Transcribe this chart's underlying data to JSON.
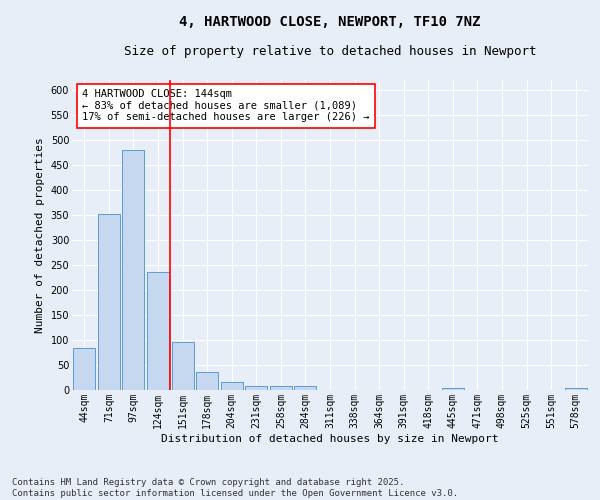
{
  "title1": "4, HARTWOOD CLOSE, NEWPORT, TF10 7NZ",
  "title2": "Size of property relative to detached houses in Newport",
  "xlabel": "Distribution of detached houses by size in Newport",
  "ylabel": "Number of detached properties",
  "categories": [
    "44sqm",
    "71sqm",
    "97sqm",
    "124sqm",
    "151sqm",
    "178sqm",
    "204sqm",
    "231sqm",
    "258sqm",
    "284sqm",
    "311sqm",
    "338sqm",
    "364sqm",
    "391sqm",
    "418sqm",
    "445sqm",
    "471sqm",
    "498sqm",
    "525sqm",
    "551sqm",
    "578sqm"
  ],
  "values": [
    85,
    352,
    481,
    236,
    96,
    36,
    16,
    8,
    8,
    8,
    0,
    0,
    0,
    0,
    0,
    4,
    0,
    0,
    0,
    0,
    4
  ],
  "bar_color": "#c5d8f0",
  "bar_edge_color": "#5b9bd5",
  "annotation_text": "4 HARTWOOD CLOSE: 144sqm\n← 83% of detached houses are smaller (1,089)\n17% of semi-detached houses are larger (226) →",
  "annotation_box_color": "white",
  "annotation_box_edge_color": "red",
  "vline_color": "red",
  "vline_x": 3.5,
  "ylim": [
    0,
    620
  ],
  "yticks": [
    0,
    50,
    100,
    150,
    200,
    250,
    300,
    350,
    400,
    450,
    500,
    550,
    600
  ],
  "footer1": "Contains HM Land Registry data © Crown copyright and database right 2025.",
  "footer2": "Contains public sector information licensed under the Open Government Licence v3.0.",
  "bg_color": "#e8eef8",
  "plot_bg_color": "#e8eef8",
  "grid_color": "white",
  "title1_fontsize": 10,
  "title2_fontsize": 9,
  "axis_label_fontsize": 8,
  "tick_fontsize": 7,
  "annotation_fontsize": 7.5,
  "footer_fontsize": 6.5
}
